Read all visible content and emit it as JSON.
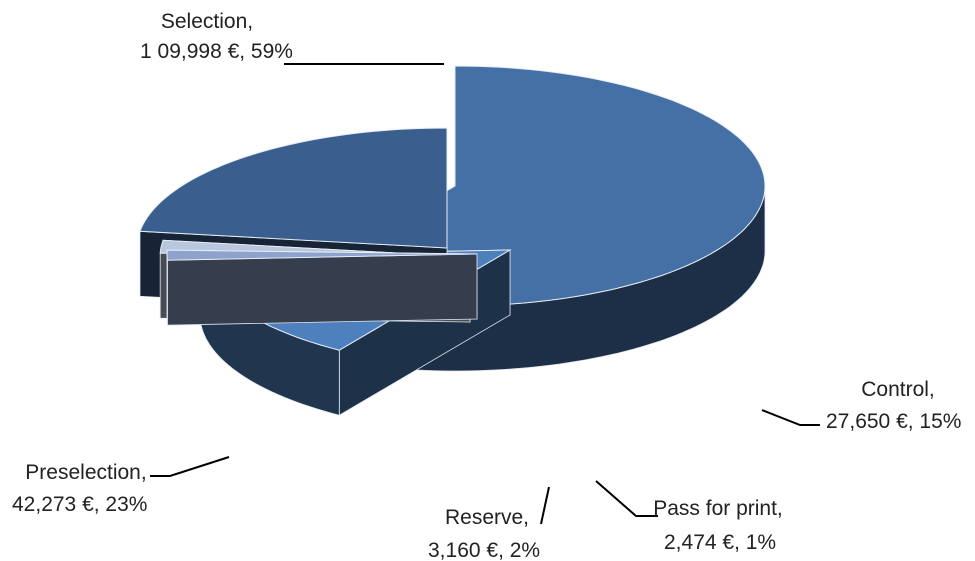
{
  "chart_data": {
    "type": "pie",
    "style": "3d-exploded",
    "currency": "€",
    "slices": [
      {
        "category": "Selection",
        "value": 109998,
        "value_label": "1 09,998 €",
        "percent": 59,
        "percent_label": "59%",
        "color": "#4470a6"
      },
      {
        "category": "Control",
        "value": 27650,
        "value_label": "27,650 €",
        "percent": 15,
        "percent_label": "15%",
        "color": "#4d80bd"
      },
      {
        "category": "Pass for print",
        "value": 2474,
        "value_label": "2,474 €",
        "percent": 1,
        "percent_label": "1%",
        "color": "#8ea3cc"
      },
      {
        "category": "Reserve",
        "value": 3160,
        "value_label": "3,160 €",
        "percent": 2,
        "percent_label": "2%",
        "color": "#b8c6de"
      },
      {
        "category": "Preselection",
        "value": 42273,
        "value_label": "42,273 €",
        "percent": 23,
        "percent_label": "23%",
        "color": "#3a5f8e"
      }
    ]
  }
}
